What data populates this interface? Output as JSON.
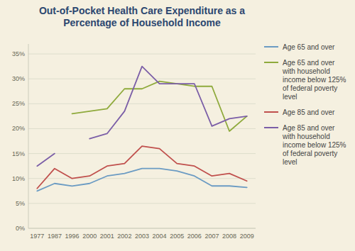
{
  "chart_data": {
    "type": "line",
    "title": "Out-of-Pocket Health Care Expenditure as a\nPercentage of Household Income",
    "categories": [
      "1977",
      "1987",
      "1996",
      "2000",
      "2001",
      "2002",
      "2003",
      "2004",
      "2005",
      "2006",
      "2007",
      "2008",
      "2009"
    ],
    "series": [
      {
        "name": "Age 65 and over",
        "color": "#6b9bc3",
        "values": [
          7.5,
          9.0,
          8.5,
          9.0,
          10.5,
          11.0,
          12.0,
          12.0,
          11.5,
          10.5,
          8.5,
          8.5,
          8.2
        ]
      },
      {
        "name": "Age 65 and over\nwith household\nincome below 125%\nof federal poverty\nlevel",
        "color": "#8faa3c",
        "values": [
          null,
          null,
          23.0,
          23.5,
          24.0,
          28.0,
          28.0,
          29.5,
          29.0,
          28.5,
          28.5,
          19.5,
          22.5
        ]
      },
      {
        "name": "Age 85 and over",
        "color": "#c0504d",
        "values": [
          8.0,
          12.0,
          10.0,
          10.5,
          12.5,
          13.0,
          16.5,
          16.0,
          13.0,
          12.5,
          10.5,
          11.0,
          9.5
        ]
      },
      {
        "name": "Age 85 and over\nwith household\nincome below 125%\nof federal poverty\nlevel",
        "color": "#7b5ea7",
        "values": [
          12.5,
          15.0,
          null,
          18.0,
          19.0,
          23.5,
          32.5,
          29.0,
          29.0,
          29.0,
          20.5,
          22.0,
          22.5
        ]
      }
    ],
    "ylim": [
      0,
      37
    ],
    "yticks": [
      {
        "value": 0,
        "label": "0%"
      },
      {
        "value": 5,
        "label": "5%"
      },
      {
        "value": 10,
        "label": "10%"
      },
      {
        "value": 15,
        "label": "15%"
      },
      {
        "value": 20,
        "label": "20%"
      },
      {
        "value": 25,
        "label": "25%"
      },
      {
        "value": 30,
        "label": "30%"
      },
      {
        "value": 35,
        "label": "35%"
      }
    ],
    "grid": true,
    "legend": "right"
  }
}
